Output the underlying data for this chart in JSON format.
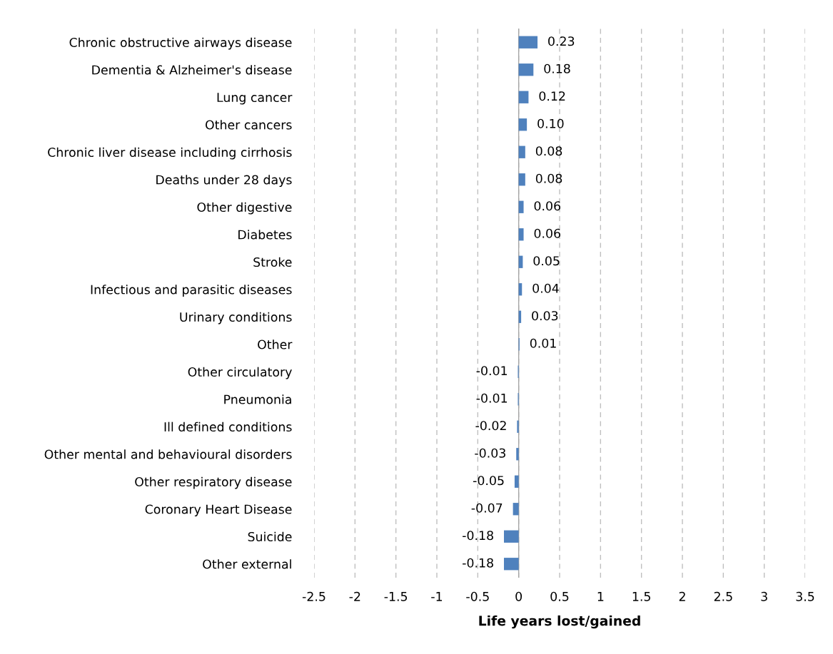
{
  "chart_data": {
    "type": "bar",
    "orientation": "horizontal",
    "xlabel": "Life years lost/gained",
    "categories": [
      "Chronic obstructive airways disease",
      "Dementia & Alzheimer's disease",
      "Lung cancer",
      "Other cancers",
      "Chronic liver disease including cirrhosis",
      "Deaths under 28 days",
      "Other digestive",
      "Diabetes",
      "Stroke",
      "Infectious and parasitic diseases",
      "Urinary conditions",
      "Other",
      "Other circulatory",
      "Pneumonia",
      "Ill defined conditions",
      "Other mental and behavioural disorders",
      "Other respiratory disease",
      "Coronary Heart Disease",
      "Suicide",
      "Other external"
    ],
    "values": [
      0.23,
      0.18,
      0.12,
      0.1,
      0.08,
      0.08,
      0.06,
      0.06,
      0.05,
      0.04,
      0.03,
      0.01,
      -0.01,
      -0.01,
      -0.02,
      -0.03,
      -0.05,
      -0.07,
      -0.18,
      -0.18
    ],
    "value_labels": [
      "0.23",
      "0.18",
      "0.12",
      "0.10",
      "0.08",
      "0.08",
      "0.06",
      "0.06",
      "0.05",
      "0.04",
      "0.03",
      "0.01",
      "-0.01",
      "-0.01",
      "-0.02",
      "-0.03",
      "-0.05",
      "-0.07",
      "-0.18",
      "-0.18"
    ],
    "color": "#4f81bd",
    "xlim": [
      -2.5,
      3.5
    ],
    "xticks": [
      -2.5,
      -2,
      -1.5,
      -1,
      -0.5,
      0,
      0.5,
      1,
      1.5,
      2,
      2.5,
      3,
      3.5
    ],
    "grid": "x",
    "legend": false
  }
}
